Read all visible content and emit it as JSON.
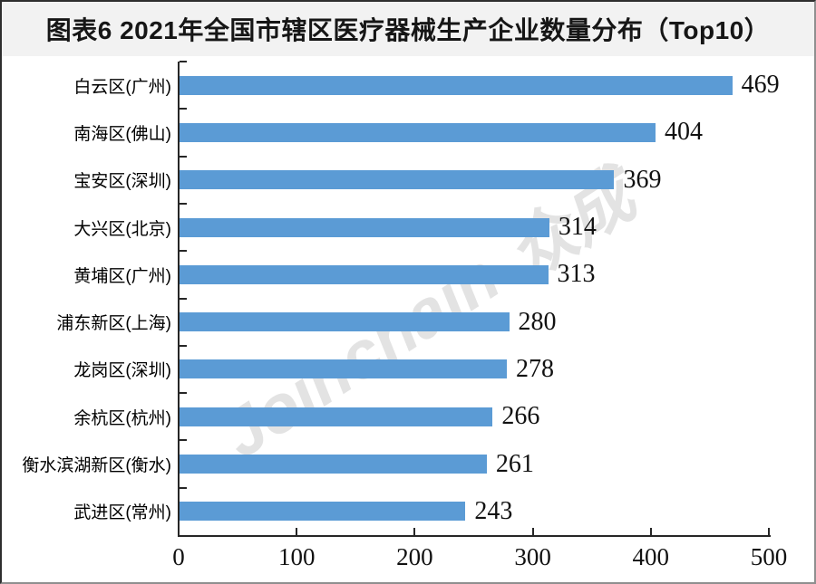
{
  "figure": {
    "title": "图表6 2021年全国市辖区医疗器械生产企业数量分布（Top10）"
  },
  "watermark": {
    "brand_prefix": "Jo",
    "brand_i": "i",
    "brand_rest": "nchain",
    "reg": "®",
    "suffix": "众成",
    "color": "#e3e3e3",
    "accent_dot_color": "#f2aba5"
  },
  "chart_data": {
    "type": "bar",
    "orientation": "horizontal",
    "title": "图表6 2021年全国市辖区医疗器械生产企业数量分布（Top10）",
    "categories": [
      "白云区(广州)",
      "南海区(佛山)",
      "宝安区(深圳)",
      "大兴区(北京)",
      "黄埔区(广州)",
      "浦东新区(上海)",
      "龙岗区(深圳)",
      "余杭区(杭州)",
      "衡水滨湖新区(衡水)",
      "武进区(常州)"
    ],
    "values": [
      469,
      404,
      369,
      314,
      313,
      280,
      278,
      266,
      261,
      243
    ],
    "xlabel": "",
    "ylabel": "",
    "xlim": [
      0,
      500
    ],
    "x_ticks": [
      0,
      100,
      200,
      300,
      400,
      500
    ],
    "bar_color": "#5B9BD5",
    "grid": false,
    "legend": null,
    "value_label_position": "end"
  }
}
